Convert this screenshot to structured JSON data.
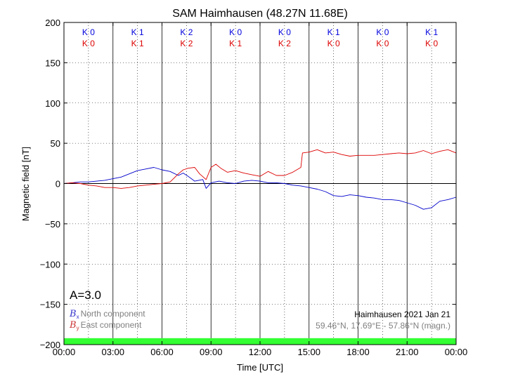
{
  "chart_data": {
    "type": "line",
    "title": "SAM Haimhausen (48.27N 11.68E)",
    "xlabel": "Time [UTC]",
    "ylabel": "Magnetic field [nT]",
    "ylim": [
      -200,
      200
    ],
    "yticks": [
      "200",
      "150",
      "100",
      "50",
      "0",
      "−50",
      "−100",
      "−150",
      "−200"
    ],
    "ytick_values": [
      200,
      150,
      100,
      50,
      0,
      -50,
      -100,
      -150,
      -200
    ],
    "xlim_hours": [
      0,
      24
    ],
    "xticks": [
      "00:00",
      "03:00",
      "06:00",
      "09:00",
      "12:00",
      "15:00",
      "18:00",
      "21:00",
      "00:00"
    ],
    "xtick_hours": [
      0,
      3,
      6,
      9,
      12,
      15,
      18,
      21,
      24
    ],
    "grid": true,
    "k_index": {
      "blue": [
        "K 0",
        "K 1",
        "K 2",
        "K 0",
        "K 0",
        "K 1",
        "K 0",
        "K 1"
      ],
      "red": [
        "K 0",
        "K 1",
        "K 2",
        "K 1",
        "K 2",
        "K 0",
        "K 0",
        "K 0"
      ]
    },
    "a_index": "A=3.0",
    "legend": {
      "bx_symbol": "B",
      "bx_sub": "x",
      "bx_label": "North component",
      "by_symbol": "B",
      "by_sub": "y",
      "by_label": "East component"
    },
    "station_label": "Haimhausen 2021 Jan 21",
    "coords_label": "59.46°N, 17.69°E - 57.86°N (magn.)",
    "colors": {
      "north": "#0000cc",
      "east": "#dd0000",
      "k_blue": "#0000dd",
      "k_red": "#dd0000",
      "status_bar": "#33ff33"
    },
    "series": [
      {
        "name": "North component",
        "x_hours": [
          0,
          0.5,
          1,
          1.5,
          2,
          2.5,
          3,
          3.5,
          4,
          4.5,
          5,
          5.5,
          6,
          6.5,
          7,
          7.3,
          7.6,
          8,
          8.5,
          8.7,
          9,
          9.5,
          10,
          10.5,
          11,
          11.5,
          12,
          12.5,
          13,
          13.5,
          14,
          14.5,
          15,
          15.5,
          16,
          16.5,
          17,
          17.5,
          18,
          18.5,
          19,
          19.5,
          20,
          20.5,
          21,
          21.5,
          22,
          22.5,
          23,
          23.5,
          24
        ],
        "values": [
          0,
          1,
          2,
          2,
          3,
          4,
          6,
          8,
          12,
          16,
          18,
          20,
          17,
          15,
          10,
          13,
          9,
          3,
          5,
          -6,
          1,
          3,
          1,
          0,
          3,
          4,
          3,
          1,
          1,
          0,
          -2,
          -3,
          -5,
          -7,
          -10,
          -15,
          -16,
          -14,
          -15,
          -17,
          -18,
          -20,
          -20,
          -21,
          -24,
          -27,
          -32,
          -30,
          -22,
          -20,
          -17
        ]
      },
      {
        "name": "East component",
        "x_hours": [
          0,
          0.5,
          1,
          1.5,
          2,
          2.5,
          3,
          3.5,
          4,
          4.5,
          5,
          5.5,
          6,
          6.5,
          7,
          7.3,
          7.6,
          8,
          8.3,
          8.7,
          9,
          9.3,
          9.6,
          10,
          10.5,
          11,
          11.5,
          12,
          12.5,
          13,
          13.5,
          14,
          14.5,
          14.6,
          15,
          15.5,
          16,
          16.5,
          17,
          17.5,
          18,
          18.5,
          19,
          19.5,
          20,
          20.5,
          21,
          21.5,
          22,
          22.5,
          23,
          23.5,
          24
        ],
        "values": [
          0,
          1,
          0,
          -2,
          -3,
          -5,
          -5,
          -6,
          -5,
          -3,
          -2,
          -1,
          0,
          2,
          12,
          17,
          19,
          20,
          12,
          5,
          20,
          24,
          19,
          14,
          16,
          13,
          11,
          9,
          15,
          10,
          10,
          14,
          20,
          38,
          39,
          42,
          38,
          39,
          36,
          34,
          35,
          35,
          35,
          36,
          37,
          38,
          37,
          38,
          41,
          37,
          40,
          42,
          38
        ]
      }
    ]
  }
}
